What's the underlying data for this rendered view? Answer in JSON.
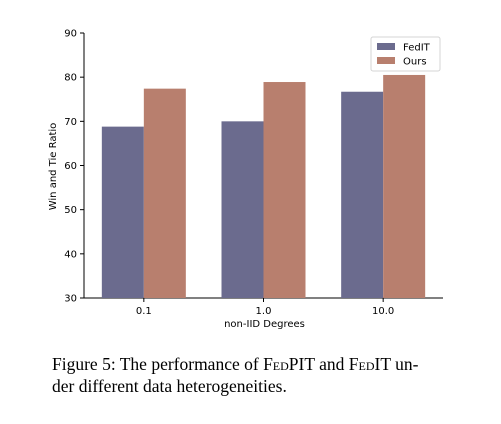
{
  "chart_data": {
    "type": "bar",
    "categories": [
      "0.1",
      "1.0",
      "10.0"
    ],
    "series": [
      {
        "name": "FedIT",
        "values": [
          68.8,
          70.0,
          76.7
        ],
        "color": "#6b6b8e"
      },
      {
        "name": "Ours",
        "values": [
          77.4,
          78.9,
          80.5
        ],
        "color": "#b87f6e"
      }
    ],
    "xlabel": "non-IID Degrees",
    "ylabel": "Win and Tie Ratio",
    "ylim": [
      30,
      90
    ],
    "yticks": [
      "30",
      "40",
      "50",
      "60",
      "70",
      "80",
      "90"
    ],
    "legend_position": "top-right",
    "grid": false
  },
  "caption": {
    "prefix": "Figure 5: The performance of ",
    "name1_initial": "F",
    "name1_rest": "ed",
    "name1_tail": "PIT",
    "middle": " and ",
    "name2_initial": "F",
    "name2_rest": "ed",
    "name2_tail": "IT",
    "line1_end": " un-",
    "line2": "der different data heterogeneities."
  }
}
